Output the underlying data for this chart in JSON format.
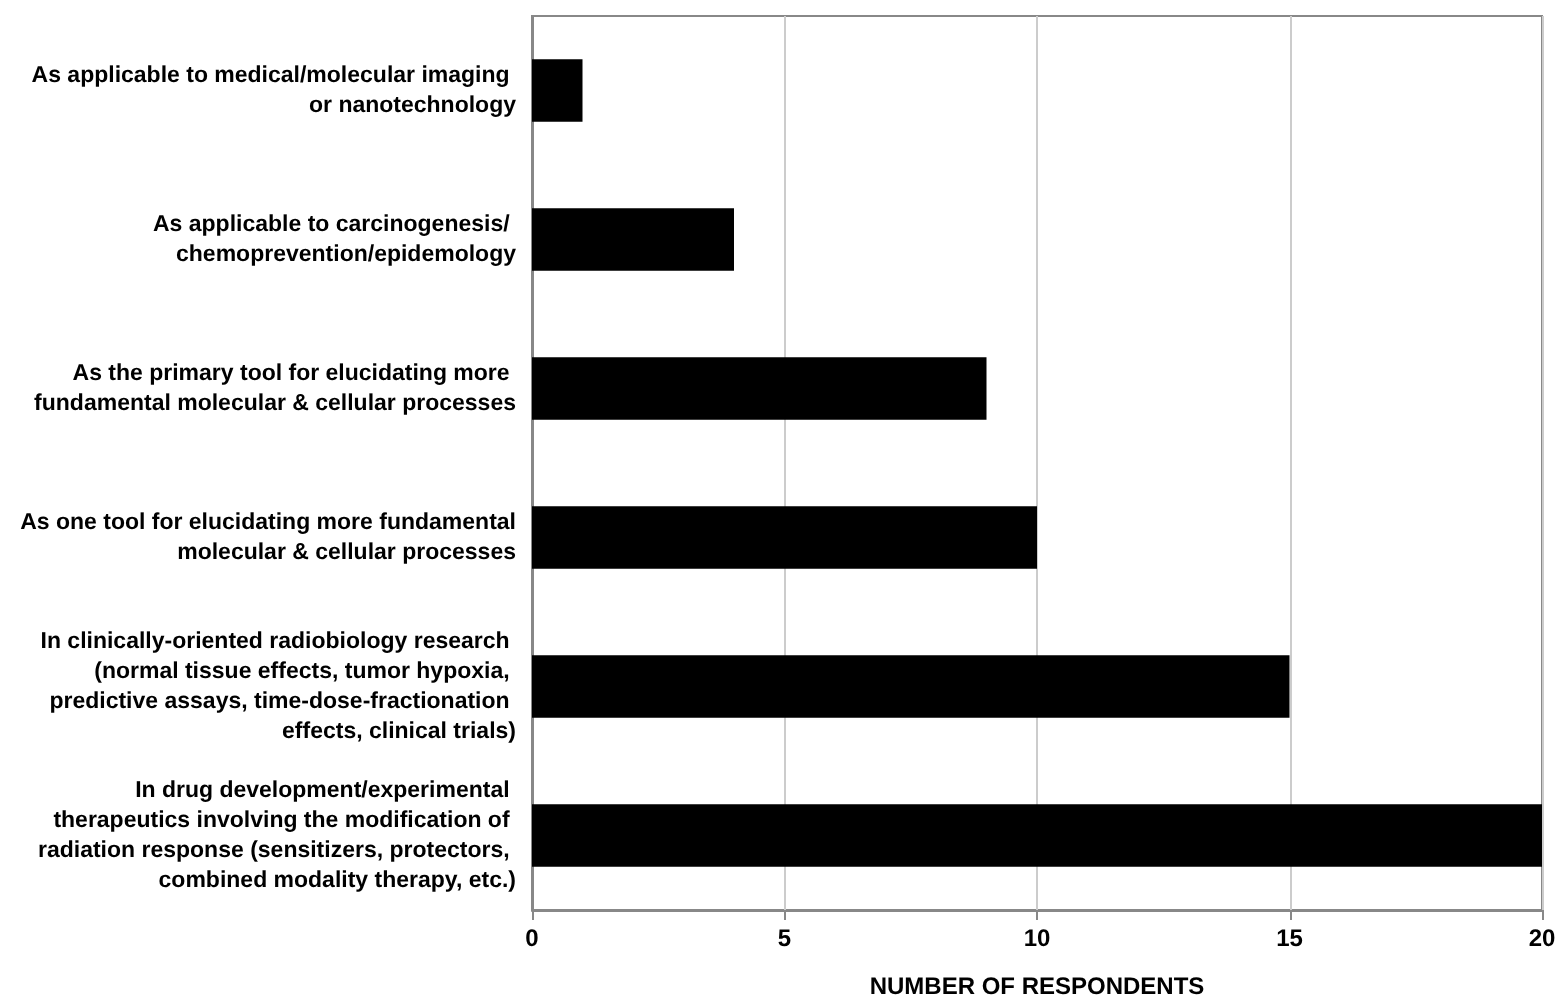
{
  "chart_data": {
    "type": "bar",
    "orientation": "horizontal",
    "categories": [
      "As applicable to medical/molecular imaging or nanotechnology",
      "As applicable to carcinogenesis/ chemoprevention/epidemology",
      "As the primary tool for elucidating more fundamental molecular & cellular processes",
      "As one tool for elucidating more fundamental molecular & cellular processes",
      "In clinically-oriented radiobiology research (normal tissue effects, tumor hypoxia, predictive assays, time-dose-fractionation effects, clinical trials)",
      "In drug development/experimental therapeutics involving the modification of radiation response (sensitizers, protectors, combined modality therapy, etc.)"
    ],
    "values": [
      1,
      4,
      9,
      10,
      15,
      20
    ],
    "color": "#000000",
    "xlabel": "NUMBER OF RESPONDENTS",
    "xlim": [
      0,
      20
    ],
    "xticks": [
      0,
      5,
      10,
      15,
      20
    ],
    "grid": "x"
  }
}
